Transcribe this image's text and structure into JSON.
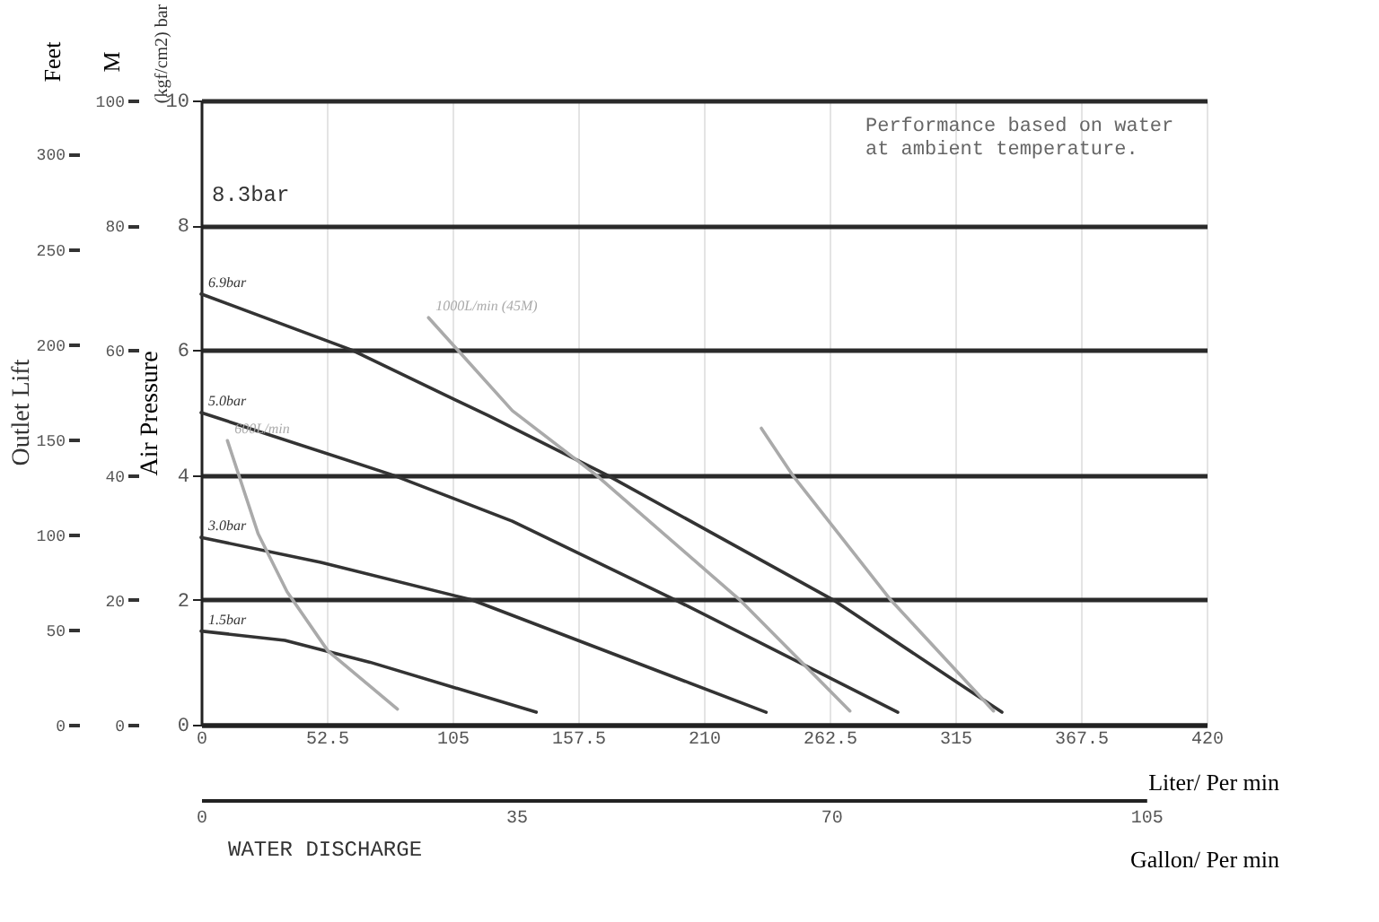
{
  "chart_data": {
    "type": "line",
    "xlabel": "Liter/ Per min",
    "ylabel": "Air Pressure",
    "y2label": "M",
    "y3label": "Feet",
    "x2label": "Gallon/ Per min",
    "xlim": [
      0,
      420
    ],
    "xticks": [
      0,
      52.5,
      105,
      157.5,
      210,
      262.5,
      315,
      367.5,
      420
    ],
    "ylim": [
      0,
      10
    ],
    "yticks": [
      0,
      2,
      4,
      6,
      8,
      10
    ],
    "y2lim": [
      0,
      100
    ],
    "y2ticks": [
      0,
      20,
      40,
      60,
      80,
      100
    ],
    "y3lim": [
      0,
      328
    ],
    "y3ticks": [
      0,
      50,
      100,
      150,
      200,
      250,
      300
    ],
    "x2lim": [
      0,
      105
    ],
    "x2ticks": [
      0,
      35,
      70,
      105
    ],
    "grid": true,
    "series": [
      {
        "name": "6.9bar",
        "color": "#333333",
        "x": [
          0,
          63,
          120,
          169.5,
          264,
          334.5
        ],
        "values": [
          6.9,
          6,
          4.95,
          4,
          2,
          0.2
        ]
      },
      {
        "name": "5.0bar",
        "color": "#333333",
        "x": [
          0,
          80,
          130,
          198,
          291
        ],
        "values": [
          5,
          4,
          3.26,
          2,
          0.2
        ]
      },
      {
        "name": "3.0bar",
        "color": "#333333",
        "x": [
          0,
          50,
          113,
          236
        ],
        "values": [
          3,
          2.6,
          2,
          0.2
        ]
      },
      {
        "name": "1.5bar",
        "color": "#333333",
        "x": [
          0,
          35,
          70.6,
          140
        ],
        "values": [
          1.5,
          1.35,
          1.0,
          0.2
        ]
      },
      {
        "name": "1000L/min (45M)",
        "color": "#aaaaaa",
        "x": [
          95,
          130,
          165,
          225,
          271
        ],
        "values": [
          6.52,
          5.03,
          4,
          2,
          0.22
        ]
      },
      {
        "name": "600L/min",
        "color": "#aaaaaa",
        "x": [
          11,
          23.8,
          35.9,
          53,
          82
        ],
        "values": [
          4.55,
          3.06,
          2.13,
          1.18,
          0.25
        ]
      },
      {
        "color": "#aaaaaa",
        "x": [
          234,
          247,
          288,
          331
        ],
        "values": [
          4.75,
          4,
          2,
          0.22
        ]
      }
    ],
    "annotations": [
      "Performance based on water\nat ambient temperature.",
      "WATER DISCHARGE",
      "Outlet Lift",
      "(kgf/cm2) bar",
      "8.3bar"
    ]
  }
}
